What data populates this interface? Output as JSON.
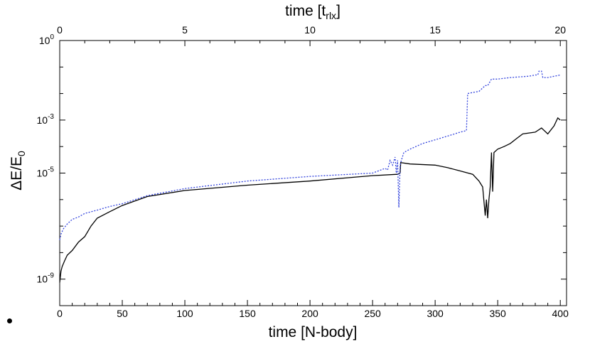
{
  "chart_data": {
    "type": "line",
    "xlabel": "time [N-body]",
    "x2label_base": "time [t",
    "x2label_sub": "rlx",
    "x2label_close": "]",
    "ylabel_base": "ΔE/E",
    "ylabel_sub": "0",
    "xlim": [
      0,
      405
    ],
    "x2lim": [
      0,
      20.25
    ],
    "ylim_log10": [
      -10,
      0
    ],
    "yscale": "log",
    "grid": false,
    "x_ticks": [
      0,
      50,
      100,
      150,
      200,
      250,
      300,
      350,
      400
    ],
    "x2_ticks": [
      0,
      5,
      10,
      15,
      20
    ],
    "y_ticks_log10": [
      0,
      -3,
      -5,
      -9
    ],
    "y_ticks_labels": [
      {
        "base": "10",
        "exp": "0"
      },
      {
        "base": "10",
        "exp": "-3"
      },
      {
        "base": "10",
        "exp": "-5"
      },
      {
        "base": "10",
        "exp": "-9"
      }
    ],
    "colors": {
      "series1": "#000000",
      "series2": "#3344dd"
    },
    "series": [
      {
        "style": "solid",
        "x": [
          0,
          1,
          2,
          4,
          6,
          10,
          15,
          20,
          25,
          30,
          40,
          50,
          70,
          100,
          150,
          200,
          250,
          270,
          272,
          272.5,
          280,
          300,
          310,
          320,
          330,
          335,
          338,
          340,
          341,
          342,
          343,
          344,
          345,
          346,
          347,
          350,
          355,
          360,
          365,
          370,
          380,
          385,
          390,
          395,
          398,
          400
        ],
        "y": [
          7.5e-10,
          2e-09,
          3e-09,
          5e-09,
          8e-09,
          1.2e-08,
          2.5e-08,
          4e-08,
          1e-07,
          2e-07,
          3.5e-07,
          6e-07,
          1.3e-06,
          2.2e-06,
          3.5e-06,
          5e-06,
          8e-06,
          9e-06,
          1e-05,
          2.5e-05,
          2.2e-05,
          2e-05,
          1.6e-05,
          1.2e-05,
          9e-06,
          5e-06,
          3e-06,
          2.5e-07,
          1e-06,
          2e-07,
          1e-06,
          3e-06,
          6e-05,
          2e-06,
          6e-05,
          8e-05,
          0.0001,
          0.00013,
          0.0002,
          0.0003,
          0.00035,
          0.0005,
          0.0003,
          0.0006,
          0.0012,
          0.001
        ]
      },
      {
        "style": "dotted",
        "x": [
          0,
          1,
          3,
          6,
          10,
          15,
          20,
          30,
          40,
          50,
          70,
          100,
          150,
          200,
          250,
          260,
          262,
          264,
          266,
          268,
          269,
          270,
          271,
          272,
          273,
          275,
          280,
          290,
          300,
          310,
          320,
          325,
          326,
          330,
          335,
          340,
          342,
          345,
          350,
          360,
          375,
          380,
          382,
          383,
          385,
          386,
          390,
          400
        ],
        "y": [
          3e-08,
          5e-08,
          8e-08,
          1.2e-07,
          1.8e-07,
          2.2e-07,
          3e-07,
          4e-07,
          5.5e-07,
          7e-07,
          1.4e-06,
          2.6e-06,
          5e-06,
          7.5e-06,
          1e-05,
          1.5e-05,
          1.3e-05,
          3e-05,
          2e-05,
          4e-05,
          1e-05,
          3e-05,
          5e-07,
          2e-05,
          3e-05,
          6e-05,
          8e-05,
          0.00013,
          0.00018,
          0.00025,
          0.00035,
          0.0004,
          0.01,
          0.011,
          0.012,
          0.02,
          0.02,
          0.035,
          0.035,
          0.04,
          0.045,
          0.05,
          0.05,
          0.07,
          0.07,
          0.04,
          0.04,
          0.05
        ]
      }
    ]
  }
}
